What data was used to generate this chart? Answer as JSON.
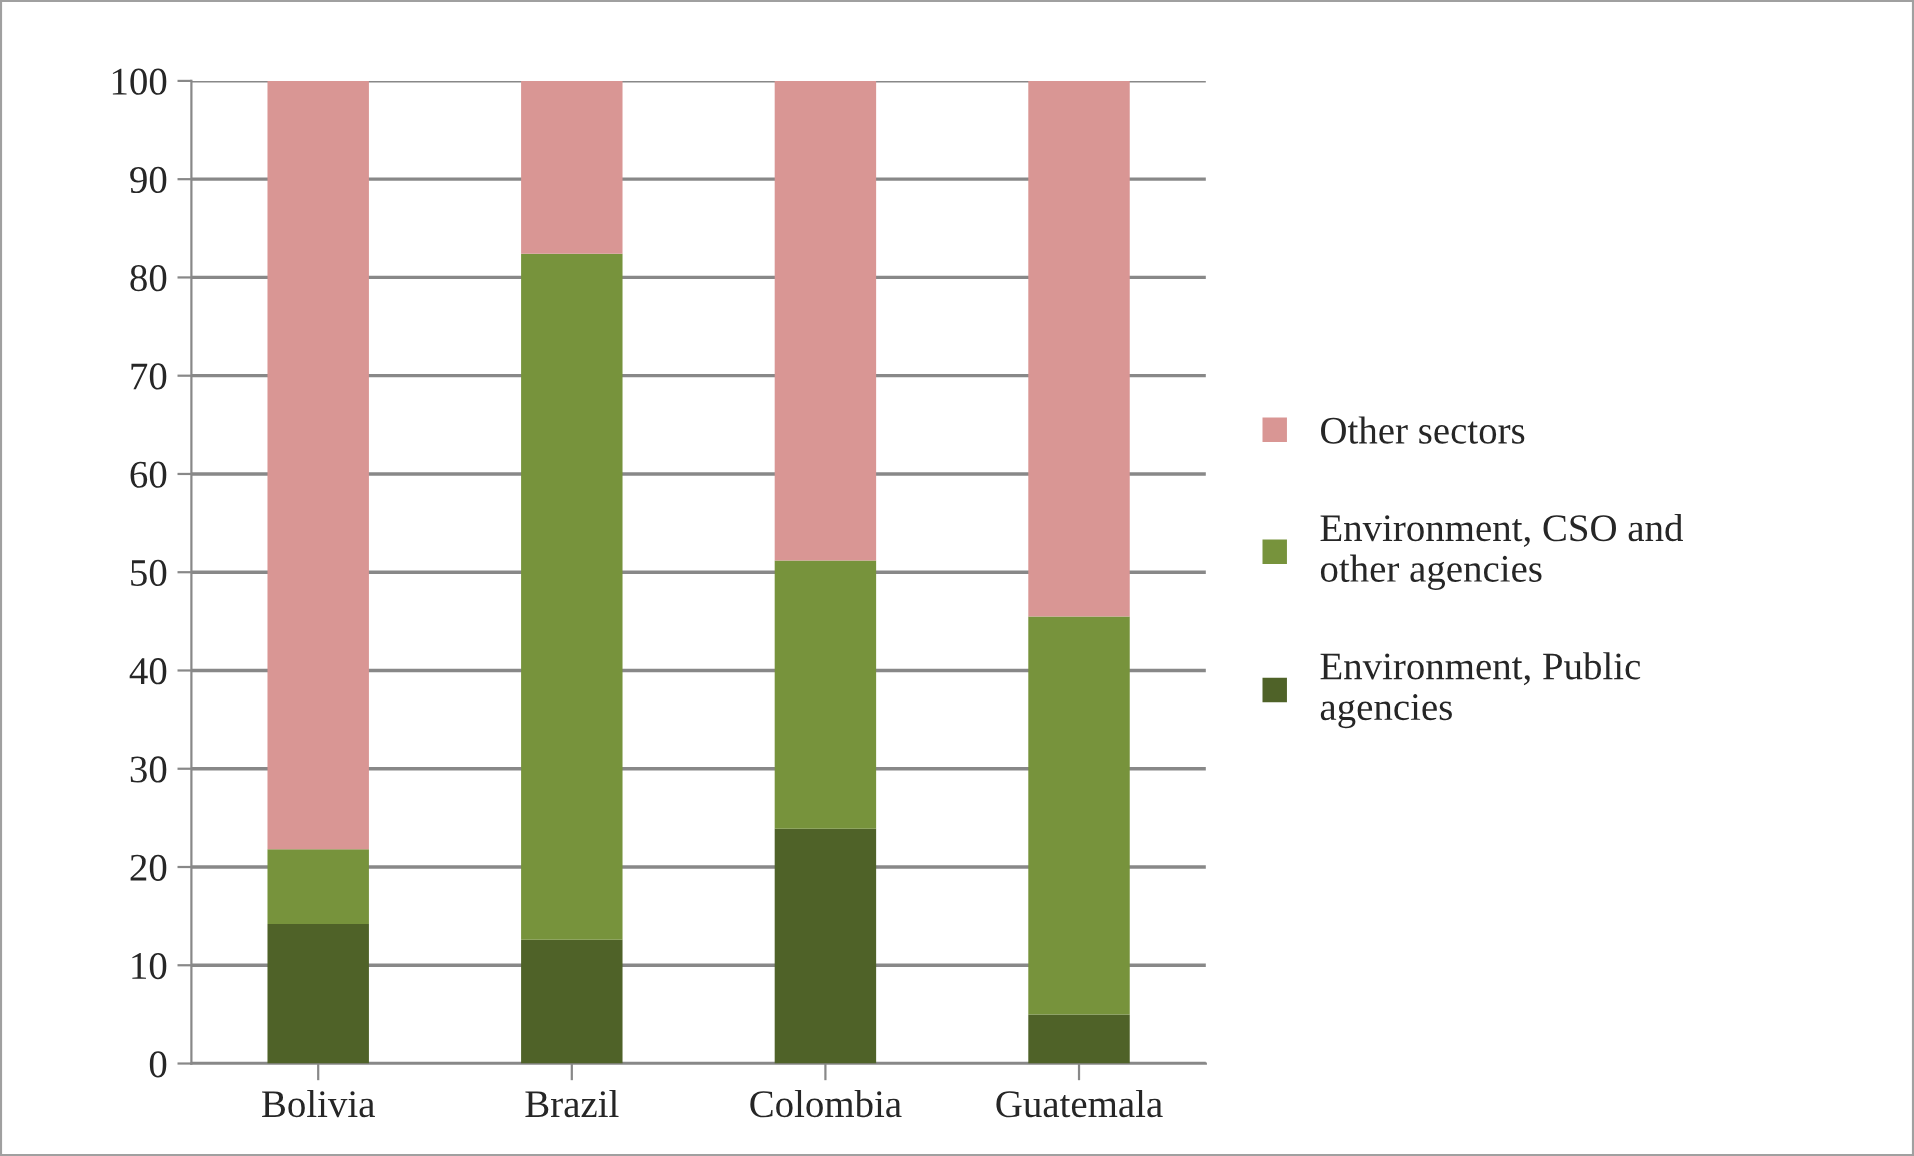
{
  "chart_data": {
    "type": "bar",
    "stacked": true,
    "categories": [
      "Bolivia",
      "Brazil",
      "Colombia",
      "Guatemala"
    ],
    "series": [
      {
        "name": "Environment, Public agencies",
        "color": "#4f6228",
        "values": [
          14.2,
          12.6,
          23.9,
          5.0
        ]
      },
      {
        "name": "Environment, CSO and other agencies",
        "color": "#77933c",
        "values": [
          7.6,
          69.8,
          27.3,
          40.5
        ]
      },
      {
        "name": "Other sectors",
        "color": "#d99694",
        "values": [
          78.2,
          17.6,
          48.8,
          54.5
        ]
      }
    ],
    "ylim": [
      0,
      100
    ],
    "yticks": [
      0,
      10,
      20,
      30,
      40,
      50,
      60,
      70,
      80,
      90,
      100
    ],
    "grid": "y",
    "legend": "right"
  }
}
